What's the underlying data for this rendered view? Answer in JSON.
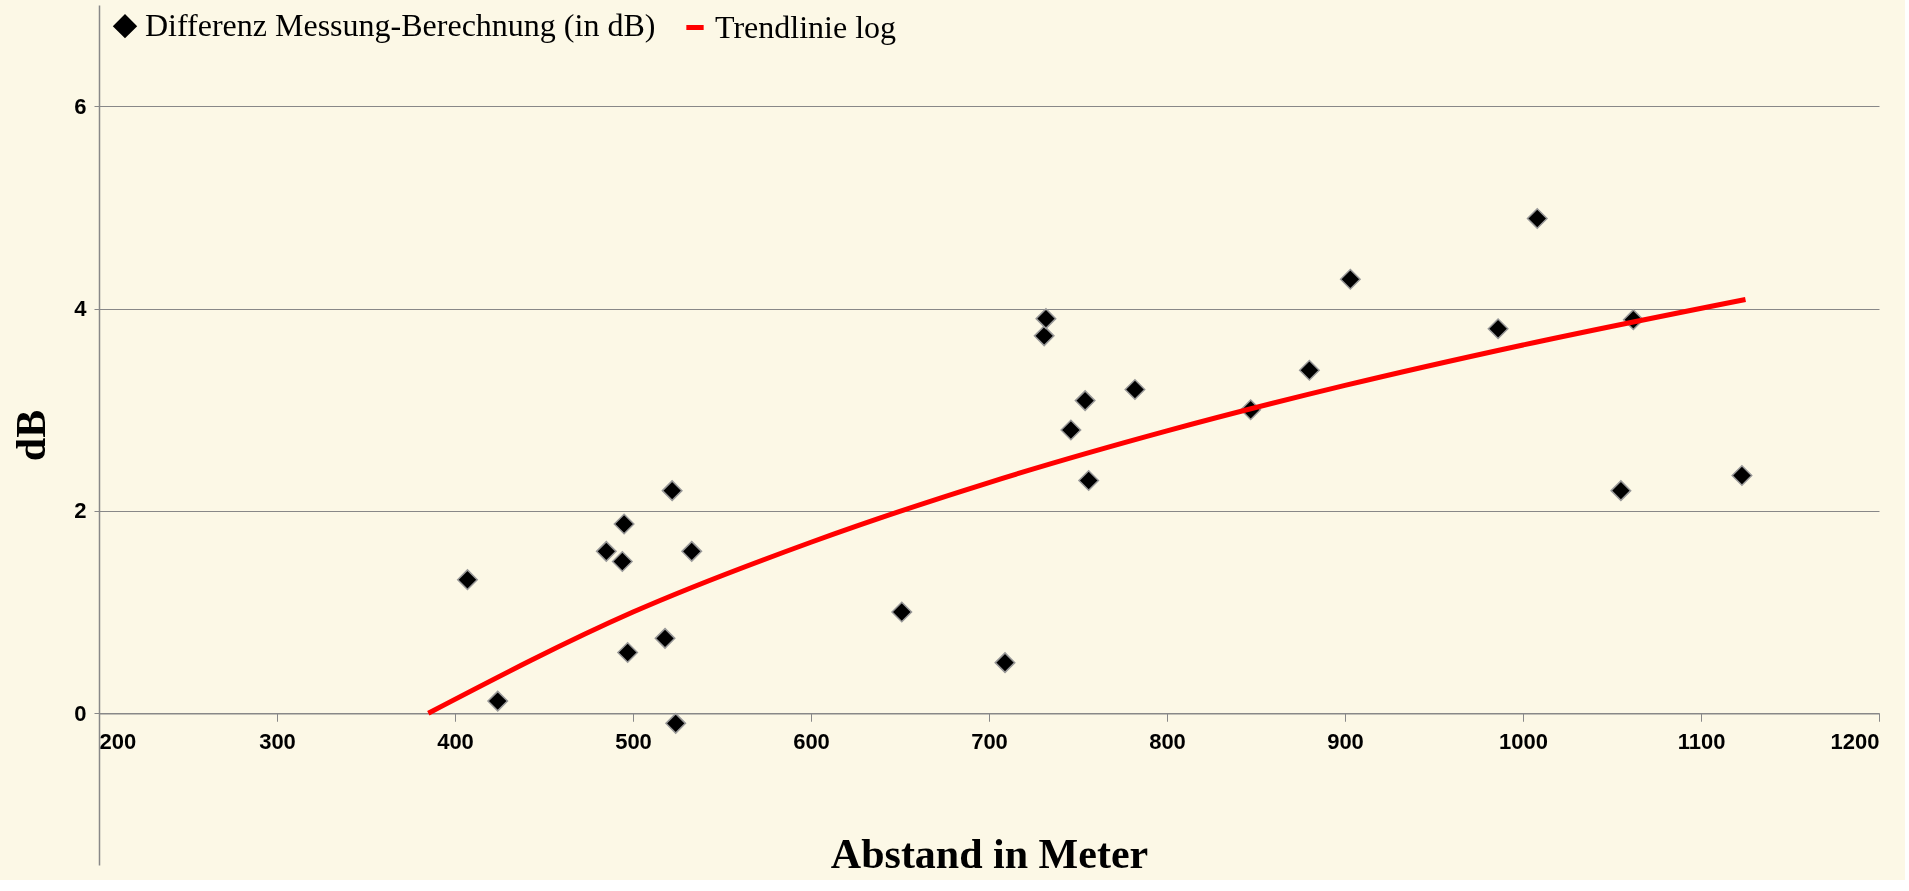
{
  "chart_data": {
    "type": "scatter",
    "xlabel": "Abstand in Meter",
    "ylabel": "dB",
    "xlim": [
      200,
      1200
    ],
    "xticks": [
      200,
      300,
      400,
      500,
      600,
      700,
      800,
      900,
      1000,
      1100,
      1200
    ],
    "ylim": [
      -1.5,
      7
    ],
    "yticks": [
      0,
      2,
      4,
      6
    ],
    "grid": "y",
    "legend": "top left",
    "series": [
      {
        "name": "Differenz Messung-Berechnung (in dB)",
        "marker": "diamond",
        "color": "#000000",
        "x": [
          407,
          424,
          485,
          494,
          495,
          497,
          518,
          522,
          524,
          533,
          651,
          709,
          731,
          732,
          746,
          754,
          756,
          782,
          847,
          880,
          903,
          986,
          1008,
          1062,
          1055,
          1123
        ],
        "values": [
          1.32,
          0.12,
          1.6,
          1.5,
          1.87,
          0.6,
          0.74,
          2.2,
          -0.1,
          1.6,
          1.0,
          0.5,
          3.73,
          3.9,
          2.8,
          3.09,
          2.3,
          3.2,
          3.0,
          3.39,
          4.29,
          3.8,
          4.89,
          3.89,
          2.2,
          2.35
        ]
      },
      {
        "name": "Trendlinie log",
        "type": "line",
        "color": "#ff0000",
        "x": [
          385,
          500,
          600,
          700,
          800,
          900,
          1000,
          1125
        ],
        "values": [
          0,
          1.0,
          1.69,
          2.28,
          2.79,
          3.24,
          3.64,
          4.09
        ]
      }
    ]
  }
}
